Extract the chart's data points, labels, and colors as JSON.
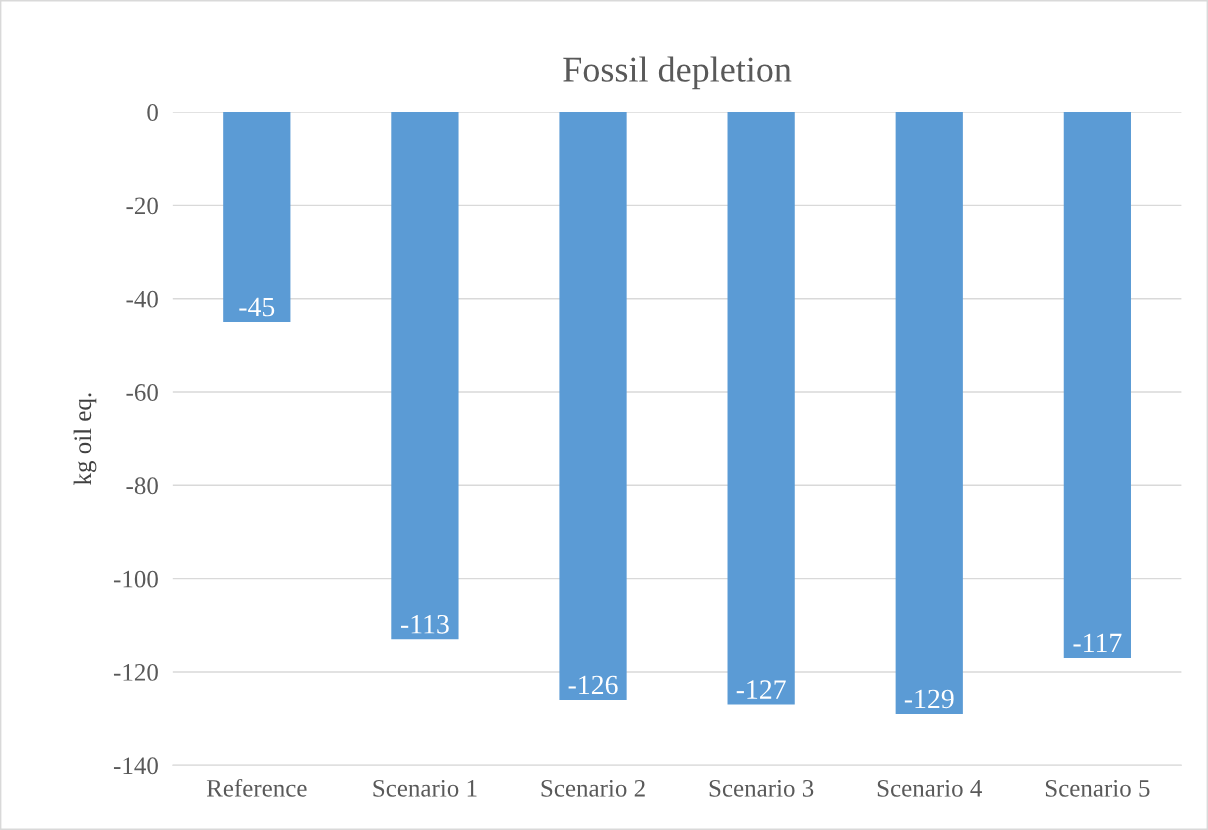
{
  "chart_data": {
    "type": "bar",
    "title": "Fossil depletion",
    "ylabel": "kg oil eq.",
    "categories": [
      "Reference",
      "Scenario 1",
      "Scenario 2",
      "Scenario 3",
      "Scenario 4",
      "Scenario 5"
    ],
    "values": [
      -45,
      -113,
      -126,
      -127,
      -129,
      -117
    ],
    "color": "#5b9bd5",
    "ylim": [
      -140,
      0
    ],
    "yticks": [
      -140,
      -120,
      -100,
      -80,
      -60,
      -40,
      -20,
      0
    ],
    "grid": "y",
    "data_labels": true,
    "legend": false
  }
}
